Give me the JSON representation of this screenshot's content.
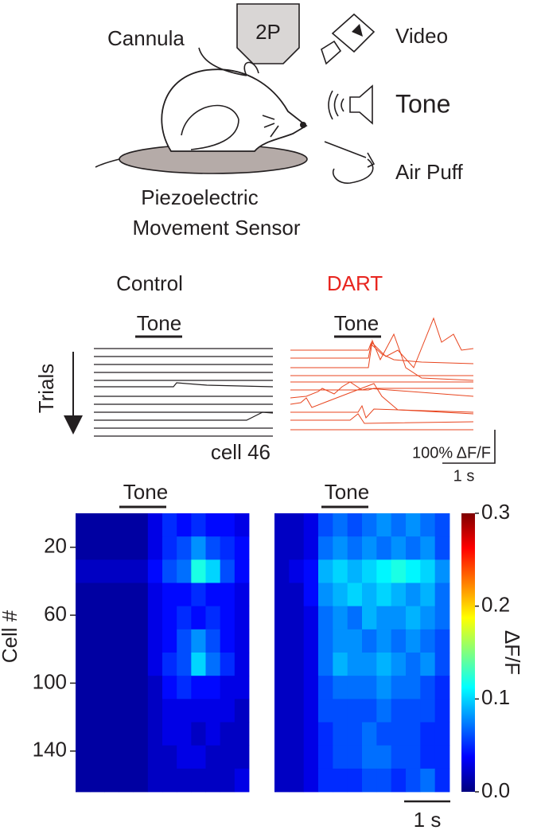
{
  "schematic": {
    "cannula": "Cannula",
    "two_p": "2P",
    "video": "Video",
    "tone": "Tone",
    "air_puff": "Air Puff",
    "sensor": [
      "Piezoelectric",
      "Movement Sensor"
    ]
  },
  "traces": {
    "control_title": "Control",
    "dart_title": "DART",
    "tone_label": "Tone",
    "trials_label": "Trials",
    "cell_label": "cell 46",
    "scale_y": "100% ΔF/F",
    "scale_x": "1 s"
  },
  "heatmap": {
    "tone_label": "Tone",
    "y_label": "Cell #",
    "ylim": [
      0,
      164
    ],
    "yticks": [
      20,
      60,
      100,
      140
    ],
    "scale_x": "1 s",
    "control": {
      "values": [
        [
          0.01,
          0.01,
          0.01,
          0.01,
          0.01,
          0.03,
          0.05,
          0.04,
          0.05,
          0.04,
          0.04,
          0.03
        ],
        [
          0.01,
          0.01,
          0.01,
          0.01,
          0.01,
          0.03,
          0.05,
          0.06,
          0.08,
          0.06,
          0.05,
          0.04
        ],
        [
          0.02,
          0.02,
          0.02,
          0.02,
          0.02,
          0.04,
          0.06,
          0.07,
          0.12,
          0.1,
          0.06,
          0.04
        ],
        [
          0.01,
          0.01,
          0.01,
          0.01,
          0.01,
          0.03,
          0.04,
          0.04,
          0.05,
          0.04,
          0.04,
          0.03
        ],
        [
          0.01,
          0.01,
          0.01,
          0.01,
          0.01,
          0.03,
          0.04,
          0.05,
          0.04,
          0.05,
          0.04,
          0.03
        ],
        [
          0.01,
          0.01,
          0.01,
          0.01,
          0.01,
          0.03,
          0.04,
          0.06,
          0.08,
          0.06,
          0.04,
          0.03
        ],
        [
          0.01,
          0.01,
          0.01,
          0.01,
          0.01,
          0.03,
          0.05,
          0.06,
          0.1,
          0.07,
          0.05,
          0.03
        ],
        [
          0.01,
          0.01,
          0.01,
          0.01,
          0.01,
          0.02,
          0.04,
          0.05,
          0.04,
          0.04,
          0.03,
          0.03
        ],
        [
          0.01,
          0.01,
          0.01,
          0.01,
          0.01,
          0.02,
          0.03,
          0.03,
          0.03,
          0.03,
          0.03,
          0.02
        ],
        [
          0.01,
          0.01,
          0.01,
          0.01,
          0.01,
          0.02,
          0.03,
          0.03,
          0.02,
          0.03,
          0.02,
          0.02
        ],
        [
          0.01,
          0.01,
          0.01,
          0.01,
          0.01,
          0.02,
          0.02,
          0.03,
          0.03,
          0.02,
          0.02,
          0.02
        ],
        [
          0.01,
          0.01,
          0.01,
          0.01,
          0.01,
          0.02,
          0.02,
          0.02,
          0.02,
          0.02,
          0.02,
          0.03
        ]
      ]
    },
    "dart": {
      "values": [
        [
          0.02,
          0.02,
          0.03,
          0.06,
          0.07,
          0.06,
          0.07,
          0.08,
          0.07,
          0.08,
          0.07,
          0.06
        ],
        [
          0.02,
          0.02,
          0.03,
          0.07,
          0.08,
          0.07,
          0.08,
          0.07,
          0.08,
          0.07,
          0.08,
          0.06
        ],
        [
          0.02,
          0.03,
          0.04,
          0.09,
          0.1,
          0.09,
          0.1,
          0.11,
          0.12,
          0.11,
          0.1,
          0.08
        ],
        [
          0.02,
          0.02,
          0.04,
          0.08,
          0.09,
          0.1,
          0.09,
          0.1,
          0.09,
          0.08,
          0.09,
          0.07
        ],
        [
          0.02,
          0.02,
          0.03,
          0.07,
          0.08,
          0.07,
          0.09,
          0.08,
          0.08,
          0.09,
          0.08,
          0.07
        ],
        [
          0.02,
          0.02,
          0.03,
          0.07,
          0.08,
          0.08,
          0.07,
          0.08,
          0.07,
          0.08,
          0.07,
          0.06
        ],
        [
          0.02,
          0.02,
          0.03,
          0.07,
          0.09,
          0.08,
          0.08,
          0.09,
          0.08,
          0.07,
          0.08,
          0.06
        ],
        [
          0.02,
          0.02,
          0.03,
          0.06,
          0.07,
          0.07,
          0.07,
          0.08,
          0.07,
          0.07,
          0.06,
          0.05
        ],
        [
          0.02,
          0.02,
          0.03,
          0.06,
          0.06,
          0.06,
          0.06,
          0.07,
          0.06,
          0.06,
          0.06,
          0.05
        ],
        [
          0.02,
          0.02,
          0.03,
          0.05,
          0.06,
          0.06,
          0.07,
          0.06,
          0.06,
          0.06,
          0.05,
          0.05
        ],
        [
          0.02,
          0.02,
          0.03,
          0.05,
          0.06,
          0.06,
          0.07,
          0.07,
          0.06,
          0.06,
          0.05,
          0.05
        ],
        [
          0.02,
          0.02,
          0.03,
          0.05,
          0.05,
          0.05,
          0.06,
          0.06,
          0.05,
          0.06,
          0.07,
          0.05
        ]
      ]
    },
    "colorbar": {
      "label": "ΔF/F",
      "lim": [
        0,
        0.3
      ],
      "ticks": [
        {
          "value": 0,
          "label": "0.0"
        },
        0.1,
        0.2,
        0.3
      ]
    }
  }
}
